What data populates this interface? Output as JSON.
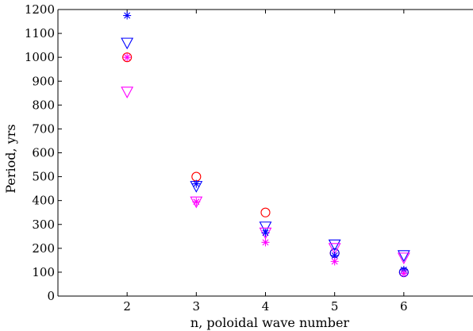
{
  "chart_data": {
    "type": "scatter",
    "title": "",
    "xlabel": "n, poloidal wave number",
    "ylabel": "Period, yrs",
    "xlim": [
      1,
      7
    ],
    "ylim": [
      0,
      1200
    ],
    "xticks": [
      2,
      3,
      4,
      5,
      6
    ],
    "yticks": [
      0,
      100,
      200,
      300,
      400,
      500,
      600,
      700,
      800,
      900,
      1000,
      1100,
      1200
    ],
    "grid": false,
    "legend": "none",
    "series": [
      {
        "marker": "circle",
        "color": "#ff0000",
        "x": [
          2,
          3,
          4,
          5,
          6
        ],
        "y": [
          1000,
          500,
          350,
          180,
          100
        ]
      },
      {
        "marker": "circle",
        "color": "#0000ff",
        "x": [
          5,
          6
        ],
        "y": [
          180,
          100
        ]
      },
      {
        "marker": "triangle-down",
        "color": "#0000ff",
        "x": [
          2,
          3,
          4,
          5,
          6
        ],
        "y": [
          1060,
          460,
          290,
          215,
          170
        ]
      },
      {
        "marker": "triangle-down",
        "color": "#ff00ff",
        "x": [
          2,
          3,
          4,
          5,
          6
        ],
        "y": [
          855,
          395,
          265,
          200,
          160
        ]
      },
      {
        "marker": "asterisk",
        "color": "#0000ff",
        "x": [
          2,
          3,
          4,
          5,
          6
        ],
        "y": [
          1175,
          470,
          265,
          170,
          110
        ]
      },
      {
        "marker": "asterisk",
        "color": "#ff00ff",
        "x": [
          2,
          3,
          4,
          5,
          6
        ],
        "y": [
          1000,
          395,
          225,
          145,
          95
        ]
      }
    ]
  }
}
